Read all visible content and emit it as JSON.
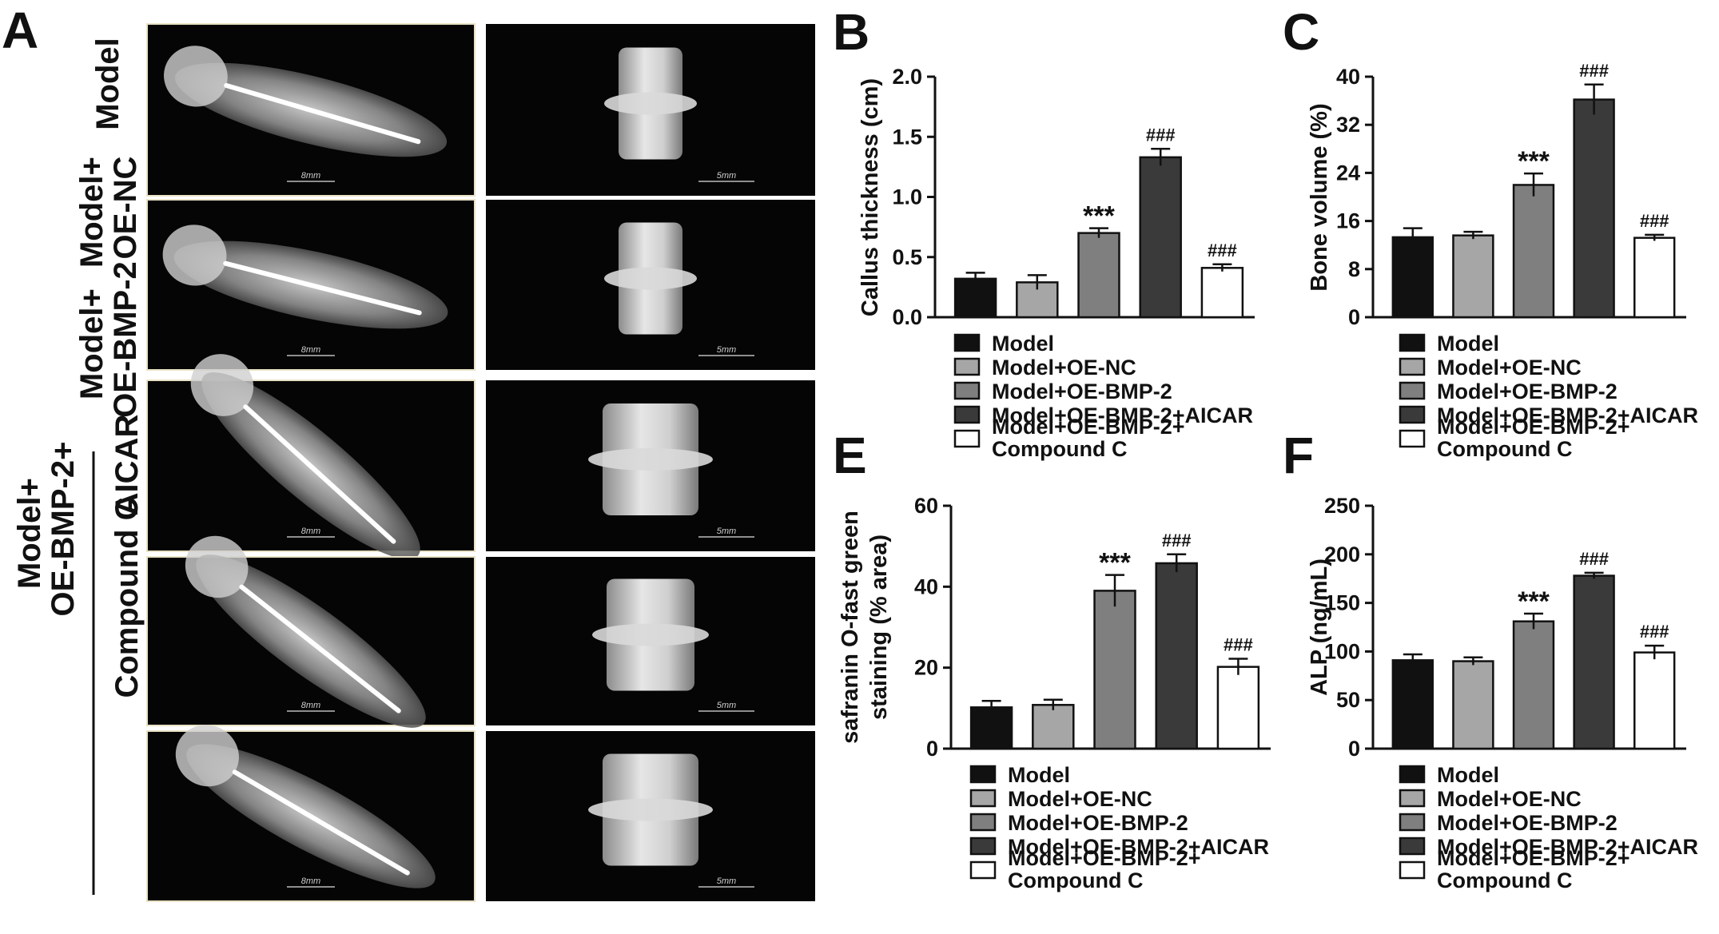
{
  "panel_a": {
    "letter": "A",
    "rows": [
      "Model",
      "Model+\nOE-NC",
      "Model+\nOE-BMP-2",
      "AICAR",
      "Compound C"
    ],
    "group_label": "Model+\nOE-BMP-2+",
    "scale_xray": "8mm",
    "scale_ct": "5mm"
  },
  "chart_data": [
    {
      "id": "B",
      "letter": "B",
      "type": "bar",
      "ylabel": "Callus thickness (cm)",
      "ylim": [
        0,
        2.0
      ],
      "yticks": [
        "0.0",
        "0.5",
        "1.0",
        "1.5",
        "2.0"
      ],
      "tick_values": [
        0,
        0.5,
        1.0,
        1.5,
        2.0
      ],
      "categories": [
        "Model",
        "Model+OE-NC",
        "Model+OE-BMP-2",
        "Model+OE-BMP-2+AICAR",
        "Model+OE-BMP-2+\nCompound C"
      ],
      "values": [
        0.32,
        0.29,
        0.7,
        1.33,
        0.41
      ],
      "errors": [
        0.05,
        0.06,
        0.04,
        0.07,
        0.03
      ],
      "annotations": [
        "",
        "",
        "***",
        "###",
        "###"
      ]
    },
    {
      "id": "C",
      "letter": "C",
      "type": "bar",
      "ylabel": "Bone volume (%)",
      "ylim": [
        0,
        40
      ],
      "yticks": [
        "0",
        "8",
        "16",
        "24",
        "32",
        "40"
      ],
      "tick_values": [
        0,
        8,
        16,
        24,
        32,
        40
      ],
      "categories": [
        "Model",
        "Model+OE-NC",
        "Model+OE-BMP-2",
        "Model+OE-BMP-2+AICAR",
        "Model+OE-BMP-2+\nCompound C"
      ],
      "values": [
        13.3,
        13.6,
        22.0,
        36.2,
        13.2
      ],
      "errors": [
        1.5,
        0.6,
        1.9,
        2.5,
        0.5
      ],
      "annotations": [
        "",
        "",
        "***",
        "###",
        "###"
      ]
    },
    {
      "id": "E",
      "letter": "E",
      "type": "bar",
      "ylabel": "safranin O-fast green\nstaining (% area)",
      "ylim": [
        0,
        60
      ],
      "yticks": [
        "0",
        "20",
        "40",
        "60"
      ],
      "tick_values": [
        0,
        20,
        40,
        60
      ],
      "categories": [
        "Model",
        "Model+OE-NC",
        "Model+OE-BMP-2",
        "Model+OE-BMP-2+AICAR",
        "Model+OE-BMP-2+\nCompound C"
      ],
      "values": [
        10.2,
        10.8,
        39.0,
        45.8,
        20.2
      ],
      "errors": [
        1.6,
        1.3,
        3.9,
        2.2,
        2.0
      ],
      "annotations": [
        "",
        "",
        "***",
        "###",
        "###"
      ]
    },
    {
      "id": "F",
      "letter": "F",
      "type": "bar",
      "ylabel": "ALP (ng/mL)",
      "ylim": [
        0,
        250
      ],
      "yticks": [
        "0",
        "50",
        "100",
        "150",
        "200",
        "250"
      ],
      "tick_values": [
        0,
        50,
        100,
        150,
        200,
        250
      ],
      "categories": [
        "Model",
        "Model+OE-NC",
        "Model+OE-BMP-2",
        "Model+OE-BMP-2+AICAR",
        "Model+OE-BMP-2+\nCompound C"
      ],
      "values": [
        91,
        90,
        131,
        178,
        99
      ],
      "errors": [
        6,
        4,
        8,
        3,
        7
      ],
      "annotations": [
        "",
        "",
        "***",
        "###",
        "###"
      ]
    }
  ],
  "legend": {
    "entries": [
      "Model",
      "Model+OE-NC",
      "Model+OE-BMP-2",
      "Model+OE-BMP-2+AICAR",
      "Model+OE-BMP-2+\nCompound C"
    ],
    "colors": [
      "#111111",
      "#a6a6a6",
      "#7f7f7f",
      "#3a3a3a",
      "#ffffff"
    ]
  }
}
